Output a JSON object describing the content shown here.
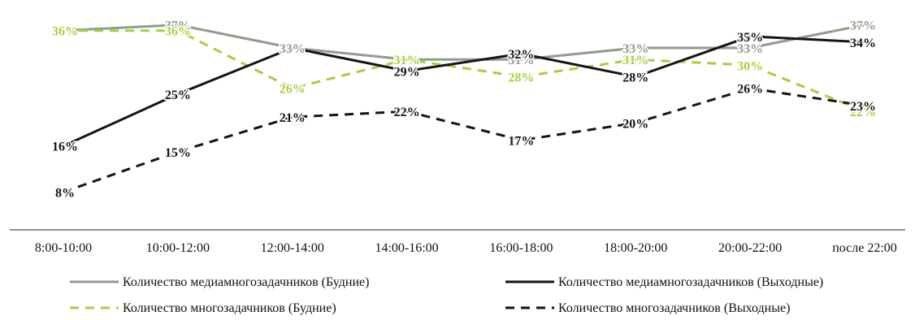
{
  "chart_data": {
    "type": "line",
    "categories": [
      "8:00-10:00",
      "10:00-12:00",
      "12:00-14:00",
      "14:00-16:00",
      "16:00-18:00",
      "18:00-20:00",
      "20:00-22:00",
      "после 22:00"
    ],
    "ylim": [
      0,
      45
    ],
    "grid": false,
    "legend_position": "bottom",
    "series": [
      {
        "name": "Количество медиамногозадачников  (Будние)",
        "values": [
          36,
          37,
          33,
          31,
          31,
          33,
          33,
          37
        ],
        "labels": [
          "",
          "37%",
          "33%",
          "31%",
          "31%",
          "33%",
          "33%",
          "37%"
        ],
        "color": "#8e9e8a",
        "dash": "solid"
      },
      {
        "name": "Количество многозадачников (Будние)",
        "values": [
          36,
          36,
          26,
          31,
          28,
          31,
          30,
          22
        ],
        "labels": [
          "36%",
          "36%",
          "26%",
          "31%",
          "28%",
          "31%",
          "30%",
          "22%"
        ],
        "color": "#a8cf3e",
        "dash": "dashed"
      },
      {
        "name": "Количество медиамногозадачников  (Выходные)",
        "values": [
          16,
          25,
          33,
          29,
          32,
          28,
          35,
          34
        ],
        "labels": [
          "16%",
          "25%",
          "",
          "29%",
          "32%",
          "28%",
          "35%",
          "34%"
        ],
        "color": "#151515",
        "dash": "solid"
      },
      {
        "name": "Количество многозадачников (Выходные)",
        "values": [
          8,
          15,
          21,
          22,
          17,
          20,
          26,
          23
        ],
        "labels": [
          "8%",
          "15%",
          "21%",
          "22%",
          "17%",
          "20%",
          "26%",
          "23%"
        ],
        "color": "#151515",
        "dash": "dashed"
      }
    ]
  }
}
